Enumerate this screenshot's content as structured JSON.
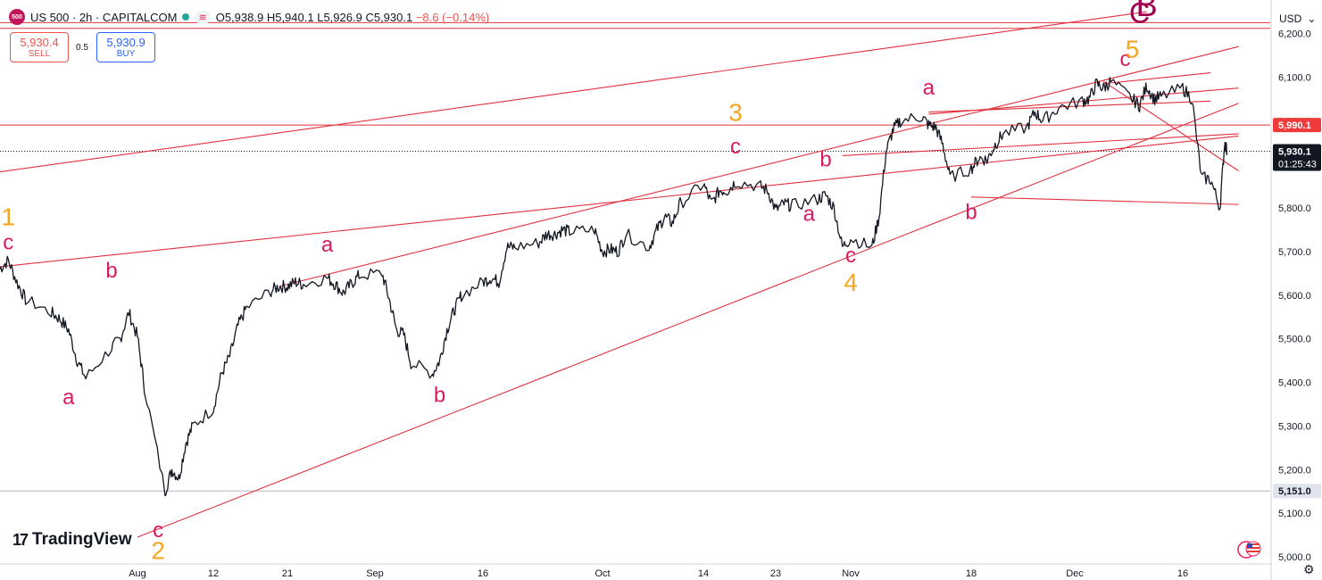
{
  "header": {
    "symbol_badge": "500",
    "title": "US 500 · 2h · CAPITALCOM",
    "ohlc": {
      "open": "O5,938.9",
      "high": "H5,940.1",
      "low": "L5,926.9",
      "close": "C5,930.1",
      "change": "−8.6 (−0.14%)"
    }
  },
  "trade": {
    "sell_price": "5,930.4",
    "sell_label": "SELL",
    "spread": "0.5",
    "buy_price": "5,930.9",
    "buy_label": "BUY"
  },
  "currency_selector": "USD",
  "branding": {
    "logo_text": "TradingView"
  },
  "icons": {
    "symbol": "sp500-badge-icon",
    "status": "market-open-dot-icon",
    "indicators": "wave-icon",
    "settings": "gear-icon",
    "flag": "us-flag-icon",
    "dropdown": "chevron-down-icon"
  },
  "colors": {
    "trendline": "#e0303e",
    "candles": "#131722",
    "wave_magenta": "#d81b60",
    "wave_orange": "#f5a623",
    "wave_dark": "#a0004f",
    "price_tag_red": "#ef3b3b",
    "price_tag_black": "#131722",
    "last_price_line": "#131722"
  },
  "chart_data": {
    "type": "line",
    "symbol": "US 500",
    "timeframe": "2h",
    "ylim": [
      5000,
      6250
    ],
    "y_ticks": [
      5000,
      5100,
      5200,
      5300,
      5400,
      5500,
      5600,
      5700,
      5800,
      5900,
      6000,
      6100,
      6200
    ],
    "y_tick_labels": [
      "5,000.0",
      "5,100.0",
      "5,200.0",
      "5,300.0",
      "5,400.0",
      "5,500.0",
      "5,600.0",
      "5,700.0",
      "5,800.0",
      "5,900.0",
      "6,000.0",
      "6,100.0",
      "6,200.0"
    ],
    "x_ticks": [
      {
        "label": "Aug",
        "date": "2024-08-01"
      },
      {
        "label": "12",
        "date": "2024-08-12"
      },
      {
        "label": "21",
        "date": "2024-08-21"
      },
      {
        "label": "Sep",
        "date": "2024-09-01"
      },
      {
        "label": "16",
        "date": "2024-09-16"
      },
      {
        "label": "Oct",
        "date": "2024-10-01"
      },
      {
        "label": "14",
        "date": "2024-10-14"
      },
      {
        "label": "23",
        "date": "2024-10-23"
      },
      {
        "label": "Nov",
        "date": "2024-11-01"
      },
      {
        "label": "18",
        "date": "2024-11-18"
      },
      {
        "label": "Dec",
        "date": "2024-12-01"
      },
      {
        "label": "16",
        "date": "2024-12-16"
      }
    ],
    "series": [
      {
        "values": [
          [
            "2024-07-16",
            5660
          ],
          [
            "2024-07-17",
            5680
          ],
          [
            "2024-07-18",
            5630
          ],
          [
            "2024-07-19",
            5590
          ],
          [
            "2024-07-22",
            5560
          ],
          [
            "2024-07-23",
            5545
          ],
          [
            "2024-07-24",
            5520
          ],
          [
            "2024-07-25",
            5450
          ],
          [
            "2024-07-26",
            5410
          ],
          [
            "2024-07-29",
            5480
          ],
          [
            "2024-07-30",
            5500
          ],
          [
            "2024-07-31",
            5560
          ],
          [
            "2024-08-01",
            5505
          ],
          [
            "2024-08-02",
            5390
          ],
          [
            "2024-08-05",
            5150
          ],
          [
            "2024-08-06",
            5200
          ],
          [
            "2024-08-07",
            5180
          ],
          [
            "2024-08-08",
            5260
          ],
          [
            "2024-08-09",
            5300
          ],
          [
            "2024-08-12",
            5340
          ],
          [
            "2024-08-13",
            5420
          ],
          [
            "2024-08-14",
            5460
          ],
          [
            "2024-08-15",
            5530
          ],
          [
            "2024-08-16",
            5570
          ],
          [
            "2024-08-19",
            5610
          ],
          [
            "2024-08-20",
            5620
          ],
          [
            "2024-08-21",
            5620
          ],
          [
            "2024-08-22",
            5630
          ],
          [
            "2024-08-23",
            5625
          ],
          [
            "2024-08-26",
            5640
          ],
          [
            "2024-08-27",
            5625
          ],
          [
            "2024-08-28",
            5605
          ],
          [
            "2024-08-29",
            5625
          ],
          [
            "2024-08-30",
            5645
          ],
          [
            "2024-09-02",
            5650
          ],
          [
            "2024-09-03",
            5590
          ],
          [
            "2024-09-04",
            5520
          ],
          [
            "2024-09-05",
            5510
          ],
          [
            "2024-09-06",
            5445
          ],
          [
            "2024-09-09",
            5420
          ],
          [
            "2024-09-10",
            5450
          ],
          [
            "2024-09-11",
            5520
          ],
          [
            "2024-09-12",
            5565
          ],
          [
            "2024-09-13",
            5600
          ],
          [
            "2024-09-16",
            5630
          ],
          [
            "2024-09-17",
            5640
          ],
          [
            "2024-09-18",
            5630
          ],
          [
            "2024-09-19",
            5710
          ],
          [
            "2024-09-20",
            5710
          ],
          [
            "2024-09-23",
            5720
          ],
          [
            "2024-09-24",
            5740
          ],
          [
            "2024-09-25",
            5740
          ],
          [
            "2024-09-26",
            5750
          ],
          [
            "2024-09-27",
            5745
          ],
          [
            "2024-09-30",
            5750
          ],
          [
            "2024-10-01",
            5700
          ],
          [
            "2024-10-02",
            5705
          ],
          [
            "2024-10-03",
            5700
          ],
          [
            "2024-10-04",
            5740
          ],
          [
            "2024-10-07",
            5710
          ],
          [
            "2024-10-08",
            5750
          ],
          [
            "2024-10-09",
            5780
          ],
          [
            "2024-10-10",
            5765
          ],
          [
            "2024-10-11",
            5810
          ],
          [
            "2024-10-14",
            5855
          ],
          [
            "2024-10-15",
            5810
          ],
          [
            "2024-10-16",
            5840
          ],
          [
            "2024-10-17",
            5840
          ],
          [
            "2024-10-18",
            5860
          ],
          [
            "2024-10-21",
            5850
          ],
          [
            "2024-10-22",
            5840
          ],
          [
            "2024-10-23",
            5795
          ],
          [
            "2024-10-24",
            5810
          ],
          [
            "2024-10-25",
            5805
          ],
          [
            "2024-10-28",
            5820
          ],
          [
            "2024-10-29",
            5830
          ],
          [
            "2024-10-30",
            5800
          ],
          [
            "2024-10-31",
            5710
          ],
          [
            "2024-11-01",
            5730
          ],
          [
            "2024-11-04",
            5710
          ],
          [
            "2024-11-05",
            5780
          ],
          [
            "2024-11-06",
            5930
          ],
          [
            "2024-11-07",
            5980
          ],
          [
            "2024-11-08",
            6000
          ],
          [
            "2024-11-11",
            6010
          ],
          [
            "2024-11-12",
            5990
          ],
          [
            "2024-11-13",
            5985
          ],
          [
            "2024-11-14",
            5945
          ],
          [
            "2024-11-15",
            5870
          ],
          [
            "2024-11-18",
            5890
          ],
          [
            "2024-11-19",
            5915
          ],
          [
            "2024-11-20",
            5910
          ],
          [
            "2024-11-21",
            5945
          ],
          [
            "2024-11-22",
            5970
          ],
          [
            "2024-11-25",
            5985
          ],
          [
            "2024-11-26",
            6020
          ],
          [
            "2024-11-27",
            6000
          ],
          [
            "2024-11-29",
            6030
          ],
          [
            "2024-12-02",
            6045
          ],
          [
            "2024-12-03",
            6050
          ],
          [
            "2024-12-04",
            6085
          ],
          [
            "2024-12-05",
            6075
          ],
          [
            "2024-12-06",
            6090
          ],
          [
            "2024-12-09",
            6050
          ],
          [
            "2024-12-10",
            6035
          ],
          [
            "2024-12-11",
            6080
          ],
          [
            "2024-12-12",
            6050
          ],
          [
            "2024-12-13",
            6055
          ],
          [
            "2024-12-16",
            6075
          ],
          [
            "2024-12-17",
            6050
          ],
          [
            "2024-12-18",
            5870
          ],
          [
            "2024-12-19",
            5865
          ],
          [
            "2024-12-20",
            5800
          ],
          [
            "2024-12-20T12",
            5950
          ],
          [
            "2024-12-20T18",
            5930
          ]
        ]
      }
    ],
    "trendlines": [
      {
        "from": [
          "2024-07-16",
          5665
        ],
        "to": [
          "2024-12-22",
          5965
        ]
      },
      {
        "from": [
          "2024-07-15",
          5880
        ],
        "to": [
          "2024-12-11",
          6250
        ]
      },
      {
        "from": [
          "2024-08-01",
          5045
        ],
        "to": [
          "2024-12-22",
          6040
        ]
      },
      {
        "from": [
          "2024-08-20",
          5620
        ],
        "to": [
          "2024-12-22",
          6170
        ]
      },
      {
        "from": [
          "2024-11-12",
          6015
        ],
        "to": [
          "2024-12-22",
          6075
        ]
      },
      {
        "from": [
          "2024-11-18",
          5825
        ],
        "to": [
          "2024-12-22",
          5808
        ]
      },
      {
        "from": [
          "2024-10-31",
          5920
        ],
        "to": [
          "2024-12-22",
          5970
        ]
      },
      {
        "from": [
          "2024-12-05",
          6090
        ],
        "to": [
          "2024-12-22",
          5885
        ]
      },
      {
        "from": [
          "2024-12-05",
          6085
        ],
        "to": [
          "2024-12-19",
          6110
        ]
      },
      {
        "from": [
          "2024-11-12",
          6020
        ],
        "to": [
          "2024-12-19",
          6045
        ]
      }
    ],
    "horizontal_levels": [
      {
        "price": 5990.1,
        "label": "5,990.1",
        "style": "red"
      },
      {
        "price": 5930.1,
        "label": "5,930.1",
        "sublabel": "01:25:43",
        "style": "last"
      },
      {
        "price": 5151.0,
        "label": "5,151.0",
        "style": "gray"
      },
      {
        "price": 6212,
        "label": "",
        "style": "red"
      },
      {
        "price": 6225,
        "label": "",
        "style": "red"
      }
    ],
    "annotations": [
      {
        "text": "1",
        "date": "2024-07-17",
        "price": 5760,
        "color": "orange",
        "size": 28
      },
      {
        "text": "c",
        "date": "2024-07-17",
        "price": 5705,
        "color": "magenta",
        "size": 24
      },
      {
        "text": "b",
        "date": "2024-07-29",
        "price": 5640,
        "color": "magenta",
        "size": 24
      },
      {
        "text": "a",
        "date": "2024-07-24",
        "price": 5350,
        "color": "magenta",
        "size": 24
      },
      {
        "text": "c",
        "date": "2024-08-04",
        "price": 5045,
        "color": "magenta",
        "size": 24
      },
      {
        "text": "2",
        "date": "2024-08-04",
        "price": 4995,
        "color": "orange",
        "size": 28
      },
      {
        "text": "a",
        "date": "2024-08-26",
        "price": 5700,
        "color": "magenta",
        "size": 24
      },
      {
        "text": "b",
        "date": "2024-09-10",
        "price": 5355,
        "color": "magenta",
        "size": 24
      },
      {
        "text": "3",
        "date": "2024-10-18",
        "price": 6000,
        "color": "orange",
        "size": 28
      },
      {
        "text": "c",
        "date": "2024-10-18",
        "price": 5925,
        "color": "magenta",
        "size": 24
      },
      {
        "text": "a",
        "date": "2024-10-27",
        "price": 5770,
        "color": "magenta",
        "size": 24
      },
      {
        "text": "b",
        "date": "2024-10-29",
        "price": 5895,
        "color": "magenta",
        "size": 24
      },
      {
        "text": "c",
        "date": "2024-11-01",
        "price": 5675,
        "color": "magenta",
        "size": 24
      },
      {
        "text": "4",
        "date": "2024-11-01",
        "price": 5610,
        "color": "orange",
        "size": 28
      },
      {
        "text": "a",
        "date": "2024-11-12",
        "price": 6060,
        "color": "magenta",
        "size": 24
      },
      {
        "text": "b",
        "date": "2024-11-18",
        "price": 5775,
        "color": "magenta",
        "size": 24
      },
      {
        "text": "c",
        "date": "2024-12-08",
        "price": 6125,
        "color": "magenta",
        "size": 24
      },
      {
        "text": "5",
        "date": "2024-12-09",
        "price": 6145,
        "color": "orange",
        "size": 28
      },
      {
        "text": "C",
        "date": "2024-12-10",
        "price": 6225,
        "color": "dark",
        "size": 32
      },
      {
        "text": "B",
        "date": "2024-12-11",
        "price": 6240,
        "color": "dark",
        "size": 36
      }
    ],
    "grid": false,
    "legend": "none"
  }
}
